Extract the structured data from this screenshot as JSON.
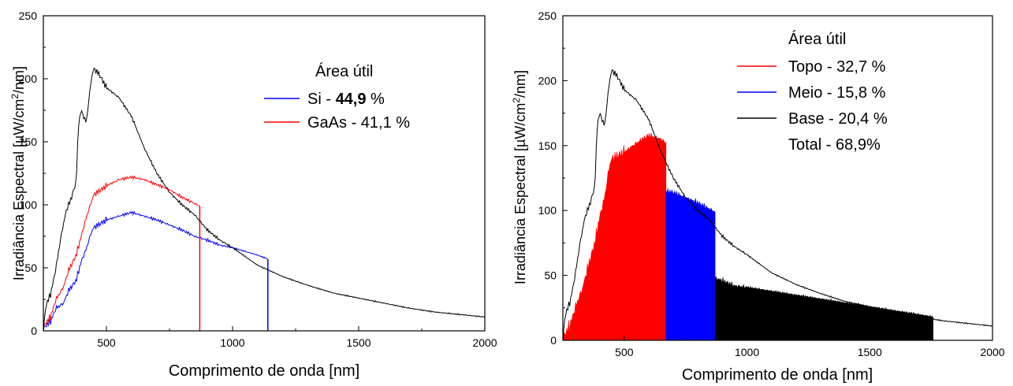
{
  "chart_data": [
    {
      "type": "area",
      "xlabel": "Comprimento de onda [nm]",
      "ylabel": "Irradiância Espectral [µW/cm²/nm]",
      "ylabel_parts": [
        "Irradiância Espectral [",
        "µ",
        "W/cm",
        "2",
        "/nm]"
      ],
      "xlim": [
        250,
        2000
      ],
      "ylim": [
        0,
        250
      ],
      "xticks": [
        500,
        1000,
        1500,
        2000
      ],
      "yticks": [
        0,
        50,
        100,
        150,
        200,
        250
      ],
      "legend_position": "top-right",
      "legend_title": "Área útil",
      "legend": [
        {
          "label_prefix": "Si - ",
          "label_value": "44,9",
          "label_suffix": " %",
          "color": "#0000ff"
        },
        {
          "label_prefix": "GaAs - ",
          "label_value": "41,1",
          "label_suffix": " %",
          "color": "#ff0000"
        }
      ],
      "series": [
        {
          "name": "Si - 44,9 %",
          "color": "#0000ff",
          "cutoff": 1140,
          "x": [
            250,
            280,
            300,
            330,
            350,
            380,
            400,
            420,
            440,
            450,
            500,
            550,
            600,
            650,
            700,
            750,
            800,
            850,
            900,
            950,
            1000,
            1050,
            1100,
            1140
          ],
          "y": [
            2,
            8,
            18,
            22,
            32,
            40,
            55,
            65,
            78,
            82,
            88,
            91,
            94,
            91,
            88,
            84,
            80,
            75,
            72,
            68,
            66,
            63,
            60,
            57
          ]
        },
        {
          "name": "GaAs - 41,1 %",
          "color": "#ff0000",
          "cutoff": 870,
          "x": [
            250,
            280,
            300,
            330,
            350,
            380,
            400,
            420,
            440,
            450,
            500,
            550,
            600,
            650,
            700,
            750,
            800,
            850,
            870
          ],
          "y": [
            3,
            12,
            25,
            35,
            48,
            60,
            75,
            90,
            102,
            108,
            115,
            120,
            122,
            120,
            116,
            112,
            106,
            101,
            99
          ]
        },
        {
          "name": "",
          "color": "#000000",
          "x": [
            250,
            260,
            280,
            300,
            320,
            340,
            360,
            380,
            390,
            400,
            410,
            420,
            440,
            450,
            470,
            500,
            550,
            600,
            650,
            700,
            750,
            800,
            850,
            900,
            950,
            1000,
            1100,
            1200,
            1300,
            1400,
            1500,
            1600,
            1700,
            1800,
            1900,
            2000
          ],
          "y": [
            0,
            20,
            30,
            50,
            75,
            95,
            105,
            118,
            165,
            175,
            170,
            165,
            200,
            208,
            204,
            193,
            185,
            170,
            145,
            125,
            110,
            100,
            92,
            80,
            72,
            66,
            52,
            43,
            36,
            30,
            26,
            22,
            18,
            15,
            13,
            11
          ]
        }
      ]
    },
    {
      "type": "area",
      "xlabel": "Comprimento de onda [nm]",
      "ylabel": "Irradiância Espectral [µW/cm²/nm]",
      "ylabel_parts": [
        "Irradiância Espectral [",
        "µ",
        "W/cm",
        "2",
        "/nm]"
      ],
      "xlim": [
        250,
        2000
      ],
      "ylim": [
        0,
        250
      ],
      "xticks": [
        500,
        1000,
        1500,
        2000
      ],
      "yticks": [
        0,
        50,
        100,
        150,
        200,
        250
      ],
      "legend_position": "top-right",
      "legend_title": "Área útil",
      "legend": [
        {
          "label": "Topo - 32,7 %",
          "color": "#ff0000",
          "swatch": true
        },
        {
          "label": "Meio - 15,8 %",
          "color": "#0000ff",
          "swatch": true
        },
        {
          "label": "Base - 20,4 %",
          "color": "#000000",
          "swatch": true
        },
        {
          "label": "Total - 68,9%",
          "color": "",
          "swatch": false
        }
      ],
      "series": [
        {
          "name": "Topo - 32,7 %",
          "color": "#ff0000",
          "range": [
            250,
            670
          ],
          "x": [
            250,
            280,
            300,
            330,
            350,
            380,
            400,
            420,
            440,
            450,
            500,
            550,
            600,
            650,
            670
          ],
          "y": [
            2,
            12,
            25,
            40,
            55,
            75,
            95,
            110,
            135,
            140,
            145,
            152,
            158,
            155,
            152
          ]
        },
        {
          "name": "Meio - 15,8 %",
          "color": "#0000ff",
          "range": [
            670,
            870
          ],
          "x": [
            670,
            700,
            750,
            800,
            850,
            870
          ],
          "y": [
            115,
            114,
            110,
            106,
            101,
            99
          ]
        },
        {
          "name": "Base - 20,4 %",
          "color": "#000000",
          "range": [
            870,
            1760
          ],
          "x": [
            870,
            900,
            950,
            1000,
            1100,
            1200,
            1300,
            1400,
            1500,
            1600,
            1700,
            1760
          ],
          "y": [
            48,
            46,
            42,
            41,
            38,
            35,
            32,
            29,
            26,
            23,
            20,
            18
          ]
        },
        {
          "name": "",
          "color": "#000000",
          "x": [
            250,
            260,
            280,
            300,
            320,
            340,
            360,
            380,
            390,
            400,
            410,
            420,
            440,
            450,
            470,
            500,
            550,
            600,
            650,
            700,
            750,
            800,
            850,
            900,
            950,
            1000,
            1100,
            1200,
            1300,
            1400,
            1500,
            1600,
            1700,
            1800,
            1900,
            2000
          ],
          "y": [
            0,
            20,
            30,
            50,
            75,
            95,
            105,
            118,
            165,
            175,
            170,
            165,
            200,
            208,
            204,
            193,
            185,
            170,
            145,
            125,
            110,
            100,
            92,
            80,
            72,
            66,
            52,
            43,
            36,
            30,
            26,
            22,
            18,
            15,
            13,
            11
          ]
        }
      ]
    }
  ]
}
